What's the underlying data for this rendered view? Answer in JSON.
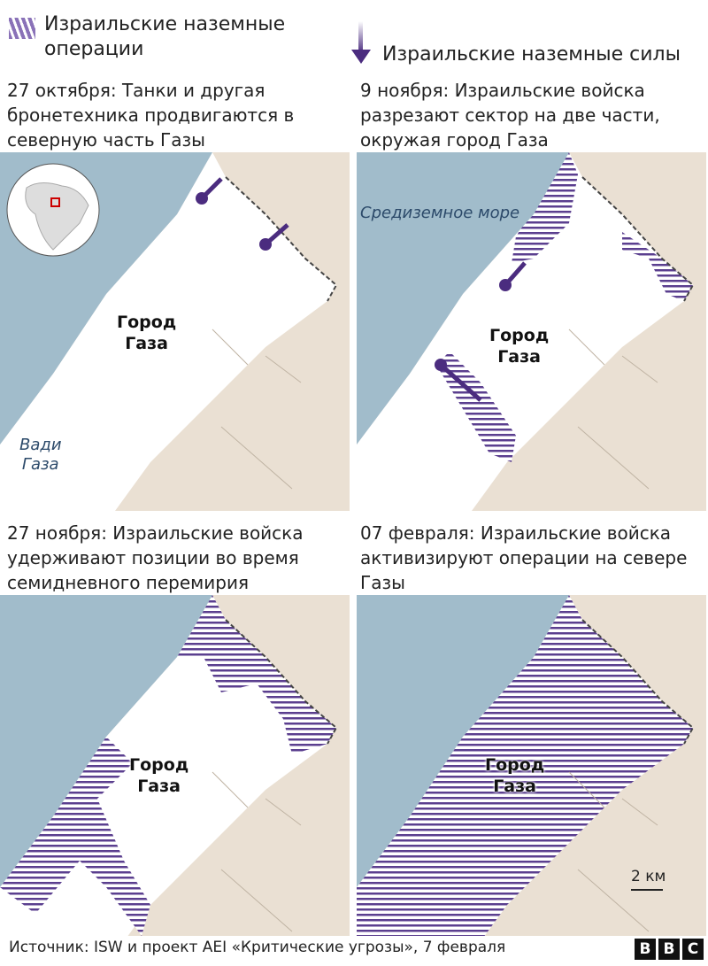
{
  "legend": {
    "operations": "Израильские наземные операции",
    "operations_line1": "Израильские наземные",
    "operations_line2": "операции",
    "forces": "Израильские наземные силы",
    "hatch_color": "#5b3f8f",
    "arrow_color": "#4b2c7f"
  },
  "colors": {
    "sea": "#a1bccb",
    "land": "#eae0d3",
    "strip": "#ffffff",
    "hatch": "#5b3f8f"
  },
  "panels": [
    {
      "caption": [
        "27 октября: Танки и другая",
        "бронетехника продвигаются в",
        "северную часть Газы"
      ],
      "city": [
        "Город",
        "Газа"
      ],
      "label": [
        "Вади",
        "Газа"
      ]
    },
    {
      "caption": [
        "9 ноября: Израильские войска",
        "разрезают сектор на две части,",
        "окружая город Газа"
      ],
      "city": [
        "Город",
        "Газа"
      ],
      "label": [
        "Средиземное море"
      ]
    },
    {
      "caption": [
        "27 ноября: Израильские войска",
        "удерживают позиции во время",
        "семидневного перемирия"
      ],
      "city": [
        "Город",
        "Газа"
      ]
    },
    {
      "caption": [
        "07 февраля: Израильские войска",
        "активизируют операции на севере",
        "Газы"
      ],
      "city": [
        "Город",
        "Газа"
      ],
      "scale": "2 км"
    }
  ],
  "footer": {
    "source": "Источник: ISW и проект AEI «Критические угрозы», 7 февраля",
    "logo": [
      "B",
      "B",
      "C"
    ]
  }
}
